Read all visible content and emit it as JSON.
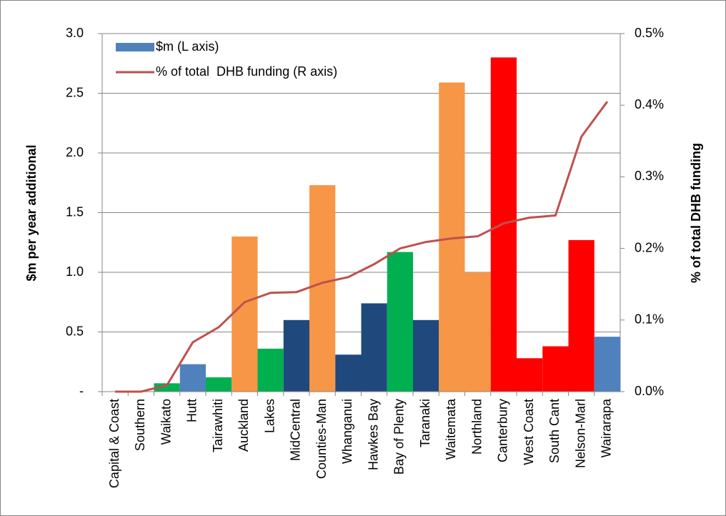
{
  "chart_data": {
    "type": "bar",
    "categories": [
      "Capital & Coast",
      "Southern",
      "Waikato",
      "Hutt",
      "Tairawhiti",
      "Auckland",
      "Lakes",
      "MidCentral",
      "Counties-Man",
      "Whanganui",
      "Hawkes Bay",
      "Bay of Plenty",
      "Taranaki",
      "Waitemata",
      "Northland",
      "Canterbury",
      "West Coast",
      "South Cant",
      "Nelson-Marl",
      "Wairarapa"
    ],
    "series": [
      {
        "name": "$m (L axis)",
        "type": "bar",
        "color": "#4f81bd",
        "colors": [
          "#4f81bd",
          "#4f81bd",
          "#00b050",
          "#4f81bd",
          "#00b050",
          "#f79646",
          "#00b050",
          "#1f497d",
          "#f79646",
          "#1f497d",
          "#1f497d",
          "#00b050",
          "#1f497d",
          "#f79646",
          "#f79646",
          "#ff0000",
          "#ff0000",
          "#ff0000",
          "#ff0000",
          "#4f81bd"
        ],
        "values": [
          0,
          0,
          0.07,
          0.23,
          0.12,
          1.3,
          0.36,
          0.6,
          1.73,
          0.31,
          0.74,
          1.17,
          0.6,
          2.59,
          1.0,
          2.8,
          0.28,
          0.38,
          1.27,
          0.46
        ]
      },
      {
        "name": "% of total  DHB funding (R axis)",
        "type": "line",
        "axis": "y2",
        "color": "#c0504d",
        "values": [
          0,
          0,
          0.009,
          0.069,
          0.09,
          0.125,
          0.138,
          0.139,
          0.152,
          0.16,
          0.178,
          0.2,
          0.209,
          0.214,
          0.217,
          0.235,
          0.243,
          0.246,
          0.356,
          0.405
        ]
      }
    ],
    "ylabel": "$m per year additional",
    "y2label": "% of total DHB funding",
    "ylim": [
      0,
      3.0
    ],
    "yticks": [
      {
        "value": 0,
        "label": "-"
      },
      0.5,
      {
        "value": 1.0,
        "label": "1.0"
      },
      1.5,
      {
        "value": 2.0,
        "label": "2.0"
      },
      2.5,
      {
        "value": 3.0,
        "label": "3.0"
      }
    ],
    "y2lim": [
      0,
      0.5
    ],
    "y2ticks": [
      {
        "value": 0,
        "label": "0.0%"
      },
      {
        "value": 0.1,
        "label": "0.1%"
      },
      {
        "value": 0.2,
        "label": "0.2%"
      },
      {
        "value": 0.3,
        "label": "0.3%"
      },
      {
        "value": 0.4,
        "label": "0.4%"
      },
      {
        "value": 0.5,
        "label": "0.5%"
      }
    ],
    "grid": true,
    "legend": "top-left"
  }
}
